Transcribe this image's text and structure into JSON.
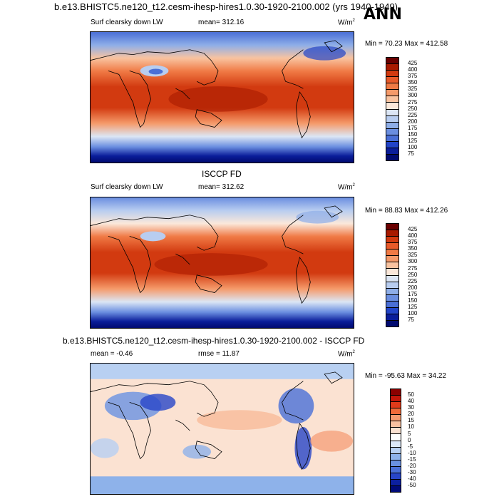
{
  "header": {
    "title": "b.e13.BHISTC5.ne120_t12.cesm-ihesp-hires1.0.30-1920-2100.002 (yrs 1940-1949)",
    "season": "ANN"
  },
  "panels": [
    {
      "variable": "Surf clearsky down LW",
      "mean": "mean= 312.16",
      "units": "W/m",
      "units_exp": "2",
      "minmax": "Min =  70.23 Max = 412.58",
      "levels": [
        "425",
        "400",
        "375",
        "350",
        "325",
        "300",
        "275",
        "250",
        "225",
        "200",
        "175",
        "150",
        "125",
        "100",
        "75"
      ]
    },
    {
      "title": "ISCCP FD",
      "variable": "Surf clearsky down LW",
      "mean": "mean= 312.62",
      "units": "W/m",
      "units_exp": "2",
      "minmax": "Min =  88.83 Max = 412.26",
      "levels": [
        "425",
        "400",
        "375",
        "350",
        "325",
        "300",
        "275",
        "250",
        "225",
        "200",
        "175",
        "150",
        "125",
        "100",
        "75"
      ]
    },
    {
      "title": "b.e13.BHISTC5.ne120_t12.cesm-ihesp-hires1.0.30-1920-2100.002 - ISCCP FD",
      "mean": "mean =  -0.46",
      "rmse": "rmse =  11.87",
      "units": "W/m",
      "units_exp": "2",
      "minmax": "Min = -95.63 Max =  34.22",
      "levels": [
        "50",
        "40",
        "30",
        "20",
        "15",
        "10",
        "5",
        "0",
        "-5",
        "-10",
        "-15",
        "-20",
        "-30",
        "-40",
        "-50"
      ]
    }
  ],
  "colors": {
    "abs_scale": [
      "#6a0000",
      "#a81a00",
      "#d23a10",
      "#e85a2a",
      "#f07a45",
      "#f59a6a",
      "#f9c3a0",
      "#fbe8da",
      "#dce6f5",
      "#b8cdf0",
      "#8eaee8",
      "#6a8ee0",
      "#4a6fd6",
      "#2244c8",
      "#0a1d9a",
      "#000a70"
    ],
    "diff_scale": [
      "#8b0000",
      "#c4160a",
      "#e03a1a",
      "#f06a3a",
      "#f59a70",
      "#f8c0a0",
      "#fbe2d2",
      "#ffffff",
      "#dce8f8",
      "#b8d0f2",
      "#8eb2ea",
      "#6a92e2",
      "#4a70d8",
      "#2846c8",
      "#0c20a0",
      "#000a78"
    ]
  }
}
